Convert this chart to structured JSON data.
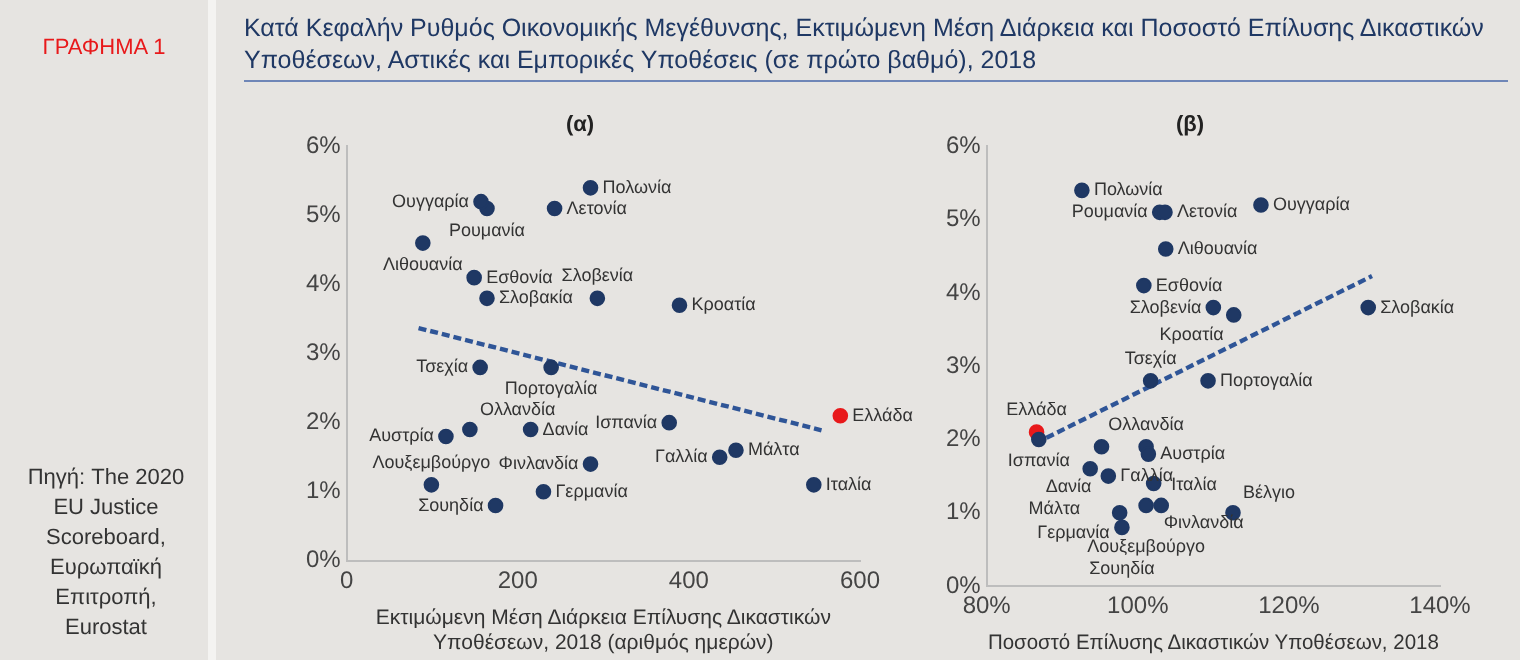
{
  "chart_data": [
    {
      "type": "other",
      "title": "Κατά Κεφαλήν Ρυθμός Οικονομικής Μεγέθυνσης, Εκτιμώμενη Μέση Διάρκεια και Ποσοστό Επίλυσης Δικαστικών Υποθέσεων, Αστικές και Εμπορικές Υποθέσεις (σε πρώτο βαθμό), 2018",
      "annotations": [
        "ΓΡΑΦΗΜΑ 1",
        "Πηγή: The 2020 EU Justice Scoreboard, Ευρωπαϊκή Επιτροπή, Eurostat"
      ]
    },
    {
      "type": "scatter",
      "title": "(α)",
      "xlabel": "Εκτιμώμενη Μέση Διάρκεια Επίλυσης Δικαστικών Υποθέσεων, 2018 (αριθμός ημερών)",
      "xlim": [
        0,
        600
      ],
      "xticks": [
        0,
        200,
        400,
        600
      ],
      "ylim": [
        0,
        6
      ],
      "yticks": [
        {
          "value": 0,
          "label": "0%"
        },
        {
          "value": 1,
          "label": "1%"
        },
        {
          "value": 2,
          "label": "2%"
        },
        {
          "value": 3,
          "label": "3%"
        },
        {
          "value": 4,
          "label": "4%"
        },
        {
          "value": 5,
          "label": "5%"
        },
        {
          "value": 6,
          "label": "6%"
        }
      ],
      "grid": false,
      "legend": false,
      "marker": "circle",
      "series": [
        {
          "type": "scatter",
          "colors": [
            "#1f3864",
            "#1f3864",
            "#1f3864",
            "#1f3864",
            "#1f3864",
            "#1f3864",
            "#1f3864",
            "#1f3864",
            "#1f3864",
            "#1f3864",
            "#1f3864",
            "#e8191b",
            "#1f3864",
            "#1f3864",
            "#1f3864",
            "#1f3864",
            "#1f3864",
            "#1f3864",
            "#1f3864",
            "#1f3864",
            "#1f3864",
            "#1f3864",
            "#1f3864"
          ],
          "x": [
            164,
            285,
            157,
            243,
            89,
            149,
            164,
            293,
            389,
            156,
            239,
            577,
            377,
            144,
            116,
            215,
            455,
            436,
            285,
            99,
            546,
            174,
            230
          ],
          "values": [
            5.1,
            5.4,
            5.2,
            5.1,
            4.6,
            4.1,
            3.8,
            3.8,
            3.7,
            2.8,
            2.8,
            2.1,
            2.0,
            1.9,
            1.8,
            1.9,
            1.6,
            1.5,
            1.4,
            1.1,
            1.1,
            0.8,
            1.0
          ]
        },
        {
          "type": "line",
          "color": "#2f5597",
          "line_style": "dashed",
          "marker": "none",
          "x": [
            84,
            555
          ],
          "values": [
            3.37,
            1.89
          ]
        }
      ],
      "annotations": [
        {
          "text": "Ρουμανία",
          "x": 164,
          "y": 5.1
        },
        {
          "text": "Πολωνία",
          "x": 285,
          "y": 5.4
        },
        {
          "text": "Ουγγαρία",
          "x": 157,
          "y": 5.2
        },
        {
          "text": "Λετονία",
          "x": 243,
          "y": 5.1
        },
        {
          "text": "Λιθουανία",
          "x": 89,
          "y": 4.6
        },
        {
          "text": "Εσθονία",
          "x": 149,
          "y": 4.1
        },
        {
          "text": "Σλοβακία",
          "x": 164,
          "y": 3.8
        },
        {
          "text": "Σλοβενία",
          "x": 293,
          "y": 3.8
        },
        {
          "text": "Κροατία",
          "x": 389,
          "y": 3.7
        },
        {
          "text": "Τσεχία",
          "x": 156,
          "y": 2.8
        },
        {
          "text": "Πορτογαλία",
          "x": 239,
          "y": 2.8
        },
        {
          "text": "Ελλάδα",
          "x": 577,
          "y": 2.1
        },
        {
          "text": "Ισπανία",
          "x": 377,
          "y": 2.0
        },
        {
          "text": "Ολλανδία",
          "x": 144,
          "y": 1.9
        },
        {
          "text": "Αυστρία",
          "x": 116,
          "y": 1.8
        },
        {
          "text": "Δανία",
          "x": 215,
          "y": 1.9
        },
        {
          "text": "Μάλτα",
          "x": 455,
          "y": 1.6
        },
        {
          "text": "Γαλλία",
          "x": 436,
          "y": 1.5
        },
        {
          "text": "Φινλανδία",
          "x": 285,
          "y": 1.4
        },
        {
          "text": "Λουξεμβούργο",
          "x": 99,
          "y": 1.1
        },
        {
          "text": "Ιταλία",
          "x": 546,
          "y": 1.1
        },
        {
          "text": "Σουηδία",
          "x": 174,
          "y": 0.8
        },
        {
          "text": "Γερμανία",
          "x": 230,
          "y": 1.0
        }
      ]
    },
    {
      "type": "scatter",
      "title": "(β)",
      "xlabel": "Ποσοστό Επίλυσης Δικαστικών Υποθέσεων, 2018",
      "xlim": [
        80,
        140
      ],
      "xticks": [
        {
          "value": 80,
          "label": "80%"
        },
        {
          "value": 100,
          "label": "100%"
        },
        {
          "value": 120,
          "label": "120%"
        },
        {
          "value": 140,
          "label": "140%"
        }
      ],
      "ylim": [
        0,
        6
      ],
      "yticks": [
        {
          "value": 0,
          "label": "0%"
        },
        {
          "value": 1,
          "label": "1%"
        },
        {
          "value": 2,
          "label": "2%"
        },
        {
          "value": 3,
          "label": "3%"
        },
        {
          "value": 4,
          "label": "4%"
        },
        {
          "value": 5,
          "label": "5%"
        },
        {
          "value": 6,
          "label": "6%"
        }
      ],
      "grid": false,
      "legend": false,
      "marker": "circle",
      "series": [
        {
          "type": "scatter",
          "colors": [
            "#1f3864",
            "#1f3864",
            "#1f3864",
            "#1f3864",
            "#1f3864",
            "#1f3864",
            "#1f3864",
            "#1f3864",
            "#1f3864",
            "#1f3864",
            "#1f3864",
            "#e8191b",
            "#1f3864",
            "#1f3864",
            "#1f3864",
            "#1f3864",
            "#1f3864",
            "#1f3864",
            "#1f3864",
            "#1f3864",
            "#1f3864",
            "#1f3864",
            "#1f3864",
            "#1f3864"
          ],
          "x": [
            102.9,
            92.6,
            116.3,
            103.6,
            103.7,
            100.8,
            130.5,
            110,
            112.7,
            101.7,
            109.3,
            86.6,
            86.9,
            101.1,
            101.4,
            95.2,
            93.7,
            96.1,
            102.1,
            101.1,
            103.1,
            97.9,
            97.6,
            112.6
          ],
          "values": [
            5.1,
            5.4,
            5.2,
            5.1,
            4.6,
            4.1,
            3.8,
            3.8,
            3.7,
            2.8,
            2.8,
            2.1,
            2.0,
            1.9,
            1.8,
            1.9,
            1.6,
            1.5,
            1.4,
            1.1,
            1.1,
            0.8,
            1.0,
            1.0
          ]
        },
        {
          "type": "line",
          "color": "#2f5597",
          "line_style": "dashed",
          "marker": "none",
          "x": [
            86.5,
            131
          ],
          "values": [
            1.95,
            4.23
          ]
        }
      ],
      "annotations": [
        {
          "text": "Ρουμανία",
          "x": 102.9,
          "y": 5.1
        },
        {
          "text": "Πολωνία",
          "x": 92.6,
          "y": 5.4
        },
        {
          "text": "Ουγγαρία",
          "x": 116.3,
          "y": 5.2
        },
        {
          "text": "Λετονία",
          "x": 103.6,
          "y": 5.1
        },
        {
          "text": "Λιθουανία",
          "x": 103.7,
          "y": 4.6
        },
        {
          "text": "Εσθονία",
          "x": 100.8,
          "y": 4.1
        },
        {
          "text": "Σλοβακία",
          "x": 130.5,
          "y": 3.8
        },
        {
          "text": "Σλοβενία",
          "x": 110,
          "y": 3.8
        },
        {
          "text": "Κροατία",
          "x": 112.7,
          "y": 3.7
        },
        {
          "text": "Τσεχία",
          "x": 101.7,
          "y": 2.8
        },
        {
          "text": "Πορτογαλία",
          "x": 109.3,
          "y": 2.8
        },
        {
          "text": "Ελλάδα",
          "x": 86.6,
          "y": 2.1
        },
        {
          "text": "Ισπανία",
          "x": 86.9,
          "y": 2.0
        },
        {
          "text": "Ολλανδία",
          "x": 101.1,
          "y": 1.9
        },
        {
          "text": "Αυστρία",
          "x": 101.4,
          "y": 1.8
        },
        {
          "text": "Δανία",
          "x": 95.2,
          "y": 1.9
        },
        {
          "text": "Μάλτα",
          "x": 93.7,
          "y": 1.6
        },
        {
          "text": "Γαλλία",
          "x": 96.1,
          "y": 1.5
        },
        {
          "text": "Φινλανδία",
          "x": 102.1,
          "y": 1.4
        },
        {
          "text": "Λουξεμβούργο",
          "x": 101.1,
          "y": 1.1
        },
        {
          "text": "Ιταλία",
          "x": 103.1,
          "y": 1.1
        },
        {
          "text": "Σουηδία",
          "x": 97.9,
          "y": 0.8
        },
        {
          "text": "Γερμανία",
          "x": 97.6,
          "y": 1.0
        },
        {
          "text": "Βέλγιο",
          "x": 112.6,
          "y": 1.0
        }
      ]
    }
  ]
}
